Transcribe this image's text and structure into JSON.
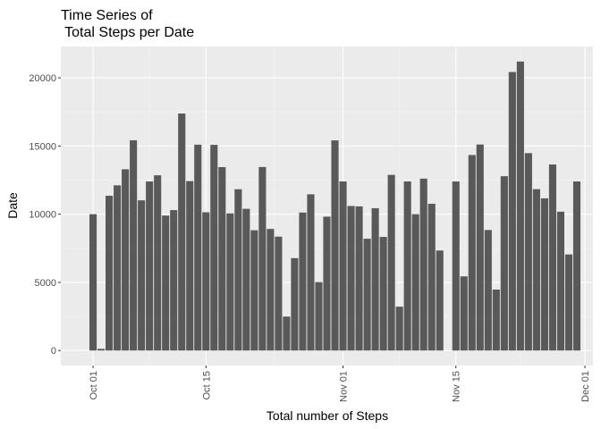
{
  "chart_data": {
    "type": "bar",
    "title_line1": "Time Series of",
    "title_line2": " Total Steps per Date",
    "xlabel": "Total number of Steps",
    "ylabel": "Date",
    "x_start": "2012-10-01",
    "x_ticks": [
      {
        "date": "2012-10-01",
        "label": "Oct 01"
      },
      {
        "date": "2012-10-15",
        "label": "Oct 15"
      },
      {
        "date": "2012-11-01",
        "label": "Nov 01"
      },
      {
        "date": "2012-11-15",
        "label": "Nov 15"
      },
      {
        "date": "2012-12-01",
        "label": "Dec 01"
      }
    ],
    "xlim": [
      "2012-09-27",
      "2012-12-02"
    ],
    "ylim": [
      -1100,
      22300
    ],
    "y_ticks": [
      0,
      5000,
      10000,
      15000,
      20000
    ],
    "y_tick_labels": [
      "0",
      "5000",
      "10000",
      "15000",
      "20000"
    ],
    "grid": true,
    "colors": {
      "bar": "#595959",
      "panel": "#ebebeb",
      "grid_major": "#ffffff",
      "grid_minor": "#f5f5f5"
    },
    "values": [
      10000,
      126,
      11352,
      12116,
      13294,
      15420,
      11015,
      12400,
      12850,
      9900,
      10300,
      17382,
      12426,
      15098,
      10139,
      15084,
      13452,
      10056,
      11829,
      10395,
      8821,
      13460,
      8918,
      8355,
      2492,
      6778,
      10119,
      11458,
      5018,
      9819,
      15414,
      12400,
      10600,
      10571,
      8200,
      10439,
      8334,
      12883,
      3219,
      12400,
      10000,
      12608,
      10765,
      7336,
      0,
      12400,
      5441,
      14339,
      15110,
      8841,
      4472,
      12787,
      20427,
      21194,
      14478,
      11834,
      11162,
      13646,
      10183,
      7047,
      12400
    ]
  }
}
